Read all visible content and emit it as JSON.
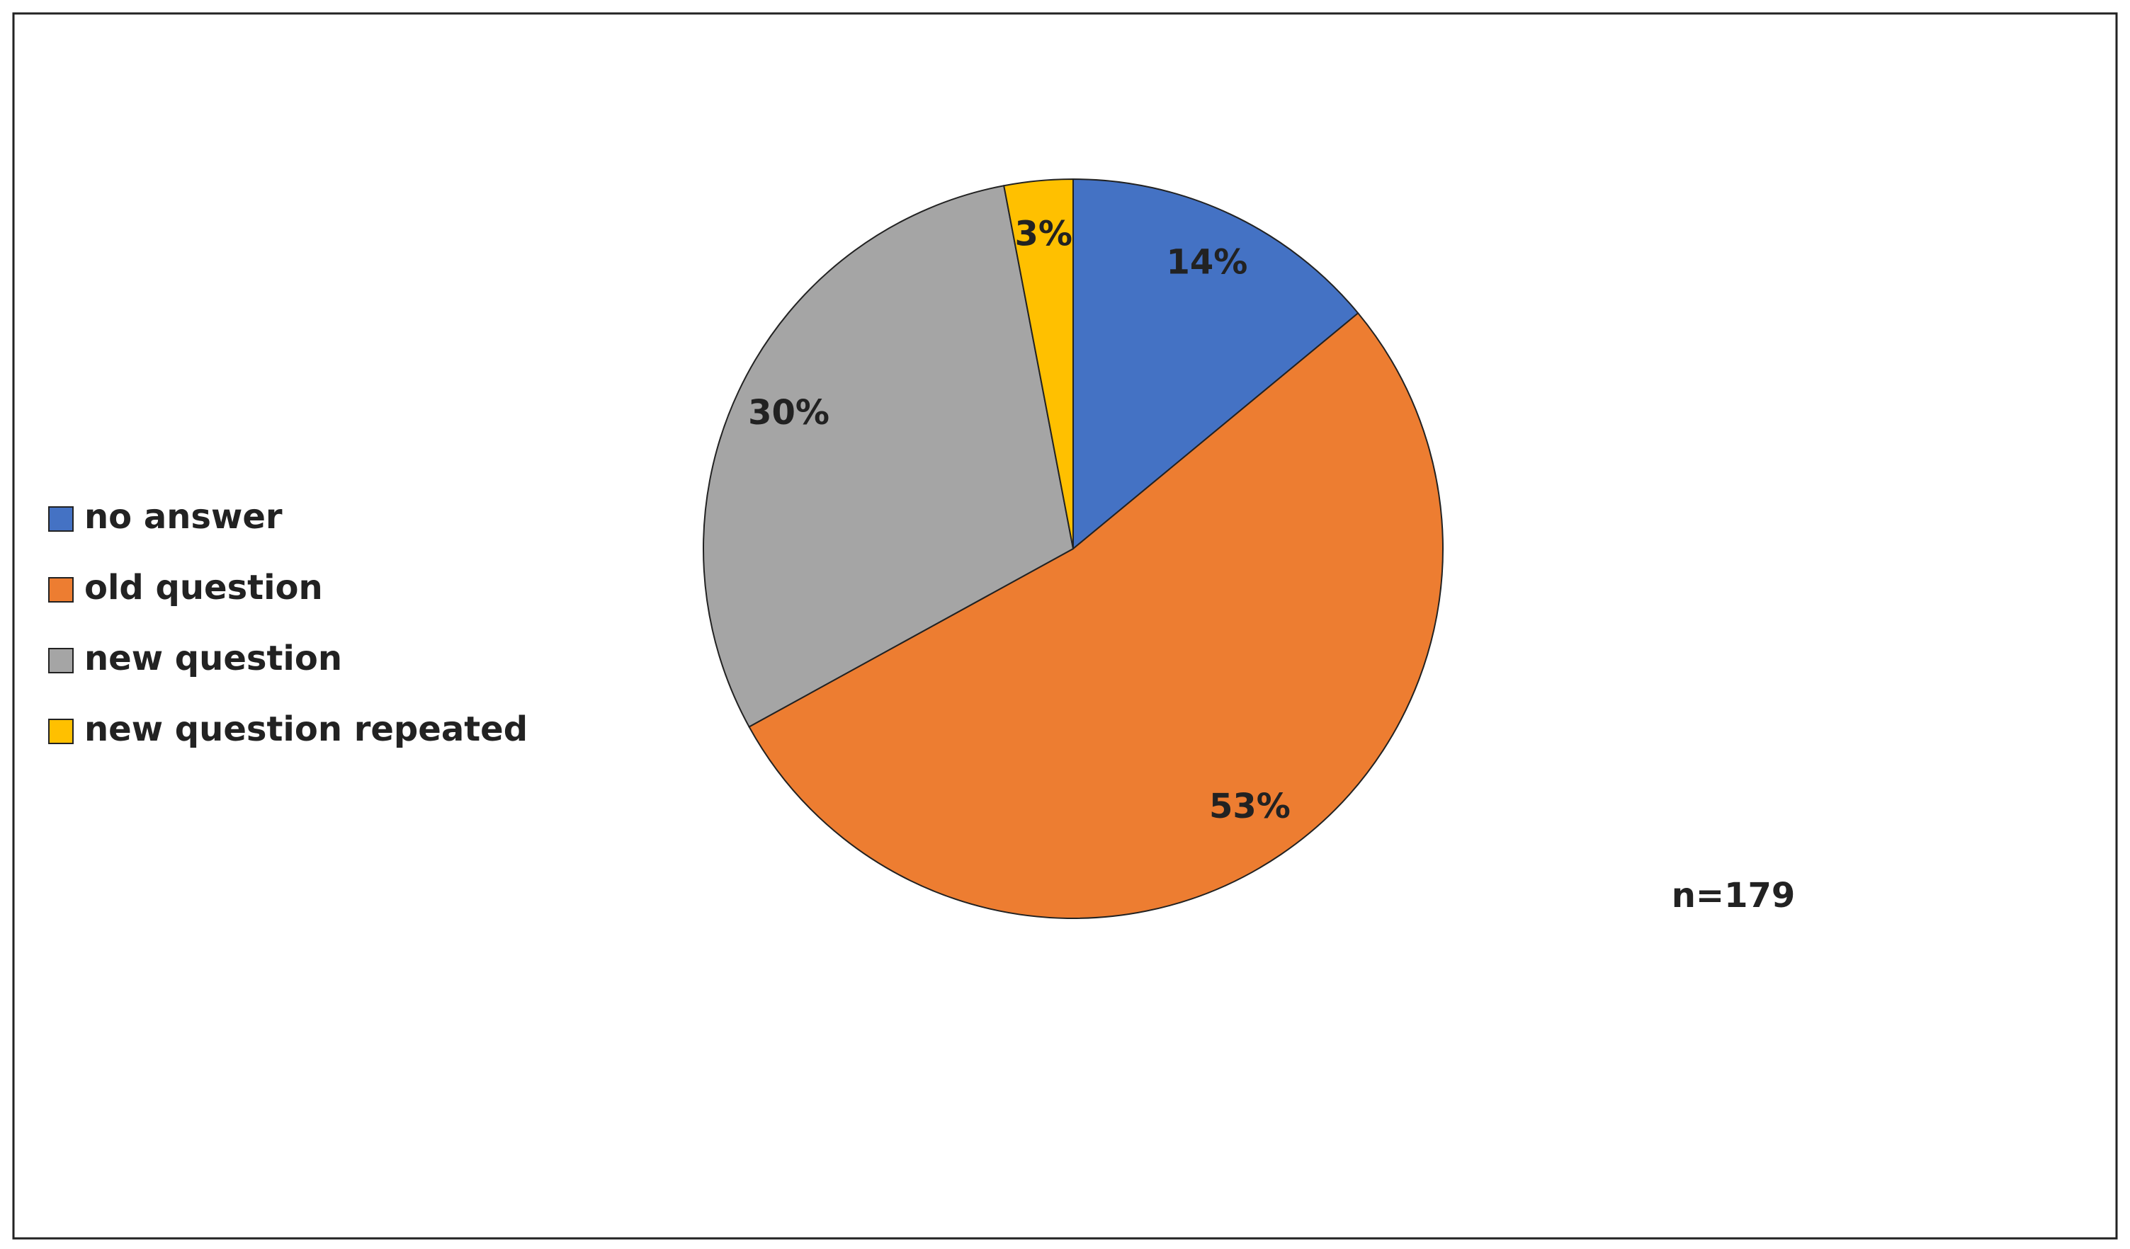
{
  "chart_data": {
    "type": "pie",
    "categories": [
      "no answer",
      "old question",
      "new question",
      "new question repeated"
    ],
    "values": [
      14,
      53,
      30,
      3
    ],
    "value_labels": [
      "14%",
      "53%",
      "30%",
      "3%"
    ],
    "colors": [
      "#4472c4",
      "#ed7d31",
      "#a5a5a5",
      "#ffc000"
    ],
    "legend": "left",
    "annotation": "n=179"
  }
}
